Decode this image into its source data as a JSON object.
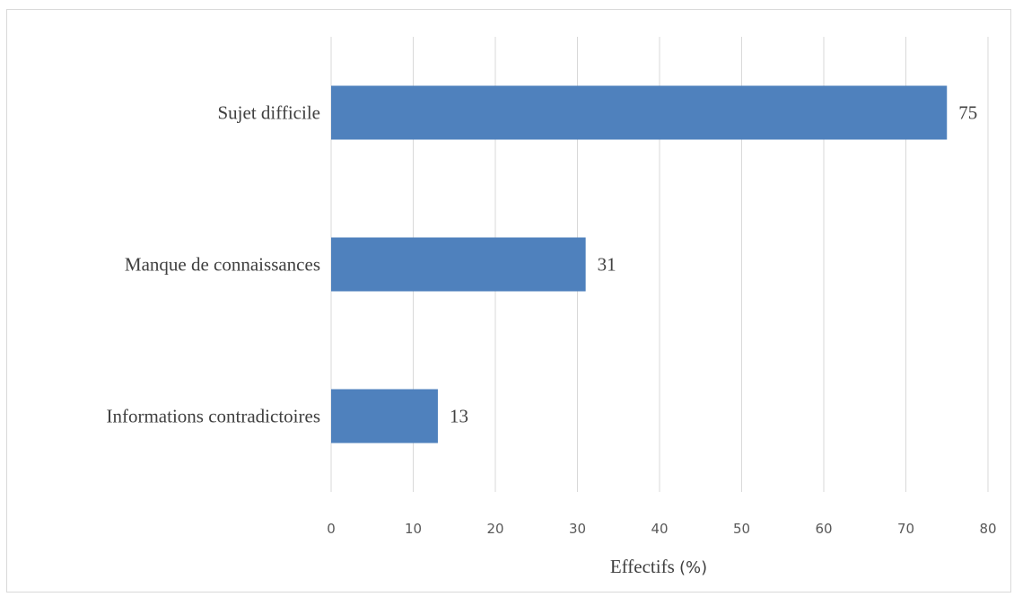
{
  "chart_data": {
    "type": "bar",
    "orientation": "horizontal",
    "categories": [
      "Sujet difficile",
      "Manque de connaissances",
      "Informations contradictoires"
    ],
    "values": [
      75,
      31,
      13
    ],
    "data_labels": [
      "75",
      "31",
      "13"
    ],
    "xlim": [
      0,
      80
    ],
    "x_ticks": [
      "0",
      "10",
      "20",
      "30",
      "40",
      "50",
      "60",
      "70",
      "80"
    ],
    "xlabel": "Effectifs (%)",
    "xlabel_parts": [
      "Effectifs ",
      "(%)"
    ],
    "grid": "vertical",
    "legend": "none",
    "bar_color": "#4f81bd",
    "grid_color": "#d9d9d9"
  }
}
